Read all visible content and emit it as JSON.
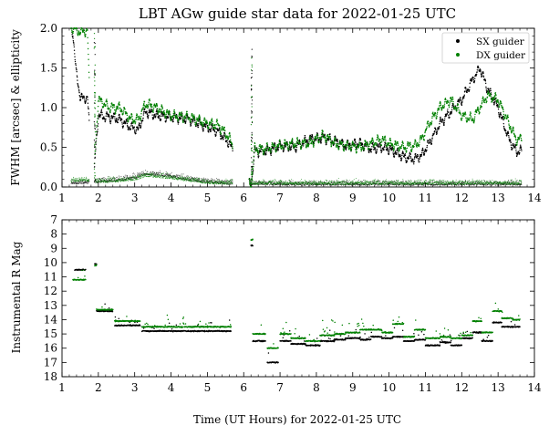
{
  "chart_data": [
    {
      "type": "scatter",
      "title": "LBT AGw guide star data for 2022-01-25 UTC",
      "ylabel": "FWHM [arcsec] & ellipticity",
      "xlim": [
        1,
        14
      ],
      "ylim": [
        0.0,
        2.0
      ],
      "xticks": [
        1,
        2,
        3,
        4,
        5,
        6,
        7,
        8,
        9,
        10,
        11,
        12,
        13,
        14
      ],
      "yticks": [
        0.0,
        0.5,
        1.0,
        1.5,
        2.0
      ],
      "xtick_labels": [
        "1",
        "2",
        "3",
        "4",
        "5",
        "6",
        "7",
        "8",
        "9",
        "10",
        "11",
        "12",
        "13",
        "14"
      ],
      "ytick_labels": [
        "0.0",
        "0.5",
        "1.0",
        "1.5",
        "2.0"
      ],
      "legend": {
        "position": "top-right",
        "entries": [
          "SX guider",
          "DX guider"
        ]
      },
      "series": [
        {
          "name": "SX guider",
          "color": "#000000",
          "fwhm": {
            "x": [
              1.3,
              1.4,
              1.5,
              1.6,
              1.7,
              1.85,
              2.0,
              2.3,
              2.6,
              2.9,
              3.1,
              3.2,
              3.3,
              3.6,
              4.0,
              4.5,
              5.0,
              5.3,
              5.6,
              6.2,
              6.3,
              6.6,
              7.0,
              7.4,
              7.8,
              8.2,
              8.5,
              8.8,
              9.2,
              9.5,
              9.8,
              10.0,
              10.4,
              10.7,
              10.9,
              11.1,
              11.4,
              11.7,
              12.0,
              12.3,
              12.5,
              12.7,
              13.0,
              13.3,
              13.5
            ],
            "y": [
              1.95,
              1.4,
              1.15,
              1.1,
              1.15,
              0.0,
              0.9,
              0.88,
              0.85,
              0.75,
              0.72,
              0.85,
              0.95,
              0.9,
              0.88,
              0.85,
              0.75,
              0.7,
              0.55,
              0.0,
              0.45,
              0.45,
              0.52,
              0.5,
              0.6,
              0.62,
              0.58,
              0.52,
              0.55,
              0.48,
              0.5,
              0.48,
              0.38,
              0.35,
              0.4,
              0.55,
              0.8,
              0.95,
              1.1,
              1.35,
              1.5,
              1.25,
              1.0,
              0.6,
              0.45
            ]
          },
          "ellipticity": {
            "x": [
              1.3,
              1.6,
              2.0,
              2.5,
              3.0,
              3.3,
              3.6,
              4.0,
              4.5,
              5.0,
              5.6,
              6.3,
              7.0,
              8.0,
              9.0,
              10.0,
              11.0,
              12.0,
              13.0,
              13.6
            ],
            "y": [
              0.06,
              0.06,
              0.07,
              0.09,
              0.12,
              0.17,
              0.16,
              0.14,
              0.1,
              0.07,
              0.05,
              0.05,
              0.04,
              0.04,
              0.04,
              0.04,
              0.04,
              0.04,
              0.04,
              0.04
            ]
          }
        },
        {
          "name": "DX guider",
          "color": "#008000",
          "fwhm": {
            "x": [
              1.3,
              1.4,
              1.5,
              1.6,
              1.7,
              1.85,
              2.0,
              2.3,
              2.6,
              2.9,
              3.1,
              3.2,
              3.3,
              3.6,
              4.0,
              4.5,
              5.0,
              5.3,
              5.6,
              6.2,
              6.3,
              6.6,
              7.0,
              7.4,
              7.8,
              8.2,
              8.5,
              8.8,
              9.2,
              9.5,
              9.8,
              10.0,
              10.4,
              10.7,
              10.9,
              11.1,
              11.4,
              11.7,
              12.0,
              12.3,
              12.5,
              12.7,
              13.0,
              13.3,
              13.5
            ],
            "y": [
              2.0,
              1.98,
              1.95,
              1.97,
              1.95,
              0.0,
              1.1,
              1.0,
              1.0,
              0.85,
              0.85,
              0.95,
              1.05,
              1.0,
              0.9,
              0.88,
              0.8,
              0.78,
              0.62,
              0.0,
              0.48,
              0.48,
              0.52,
              0.55,
              0.55,
              0.65,
              0.55,
              0.52,
              0.5,
              0.55,
              0.6,
              0.55,
              0.5,
              0.52,
              0.6,
              0.8,
              1.0,
              1.1,
              0.9,
              0.85,
              1.0,
              1.15,
              1.1,
              0.8,
              0.6
            ]
          },
          "ellipticity": {
            "x": [
              1.3,
              1.6,
              2.0,
              2.5,
              3.0,
              3.3,
              3.6,
              4.0,
              4.5,
              5.0,
              5.6,
              6.3,
              7.0,
              8.0,
              9.0,
              10.0,
              11.0,
              12.0,
              13.0,
              13.6
            ],
            "y": [
              0.08,
              0.1,
              0.07,
              0.08,
              0.1,
              0.15,
              0.14,
              0.12,
              0.09,
              0.06,
              0.05,
              0.05,
              0.05,
              0.05,
              0.05,
              0.05,
              0.05,
              0.05,
              0.05,
              0.05
            ]
          }
        }
      ],
      "gaps": [
        [
          1.75,
          1.9
        ],
        [
          5.7,
          6.15
        ]
      ]
    },
    {
      "type": "scatter",
      "xlabel": "Time (UT Hours) for 2022-01-25 UTC",
      "ylabel": "Instrumental R Mag",
      "xlim": [
        1,
        14
      ],
      "ylim": [
        18,
        7
      ],
      "inverted_y": true,
      "xticks": [
        1,
        2,
        3,
        4,
        5,
        6,
        7,
        8,
        9,
        10,
        11,
        12,
        13,
        14
      ],
      "yticks": [
        7,
        8,
        9,
        10,
        11,
        12,
        13,
        14,
        15,
        16,
        17,
        18
      ],
      "xtick_labels": [
        "1",
        "2",
        "3",
        "4",
        "5",
        "6",
        "7",
        "8",
        "9",
        "10",
        "11",
        "12",
        "13",
        "14"
      ],
      "ytick_labels": [
        "7",
        "8",
        "9",
        "10",
        "11",
        "12",
        "13",
        "14",
        "15",
        "16",
        "17",
        "18"
      ],
      "series": [
        {
          "name": "SX guider",
          "color": "#000000",
          "segments": [
            {
              "x": [
                1.35,
                1.65
              ],
              "y": 10.5
            },
            {
              "x": [
                1.9,
                1.95
              ],
              "y": 10.1
            },
            {
              "x": [
                1.95,
                2.4
              ],
              "y": 13.4
            },
            {
              "x": [
                2.45,
                3.15
              ],
              "y": 14.4
            },
            {
              "x": [
                3.2,
                5.65
              ],
              "y": 14.8
            },
            {
              "x": [
                6.2,
                6.25
              ],
              "y": 8.8
            },
            {
              "x": [
                6.25,
                6.6
              ],
              "y": 15.5
            },
            {
              "x": [
                6.65,
                6.95
              ],
              "y": 17.0
            },
            {
              "x": [
                7.0,
                7.3
              ],
              "y": 15.5
            },
            {
              "x": [
                7.3,
                7.7
              ],
              "y": 15.7
            },
            {
              "x": [
                7.7,
                8.1
              ],
              "y": 15.8
            },
            {
              "x": [
                8.1,
                8.5
              ],
              "y": 15.5
            },
            {
              "x": [
                8.5,
                8.8
              ],
              "y": 15.4
            },
            {
              "x": [
                8.8,
                9.2
              ],
              "y": 15.3
            },
            {
              "x": [
                9.2,
                9.5
              ],
              "y": 15.4
            },
            {
              "x": [
                9.5,
                9.8
              ],
              "y": 15.2
            },
            {
              "x": [
                9.8,
                10.1
              ],
              "y": 15.3
            },
            {
              "x": [
                10.1,
                10.4
              ],
              "y": 15.2
            },
            {
              "x": [
                10.4,
                10.7
              ],
              "y": 15.5
            },
            {
              "x": [
                10.7,
                11.0
              ],
              "y": 15.4
            },
            {
              "x": [
                11.0,
                11.4
              ],
              "y": 15.8
            },
            {
              "x": [
                11.4,
                11.7
              ],
              "y": 15.6
            },
            {
              "x": [
                11.7,
                12.0
              ],
              "y": 15.8
            },
            {
              "x": [
                12.0,
                12.3
              ],
              "y": 15.3
            },
            {
              "x": [
                12.3,
                12.55
              ],
              "y": 14.9
            },
            {
              "x": [
                12.55,
                12.85
              ],
              "y": 15.5
            },
            {
              "x": [
                12.85,
                13.1
              ],
              "y": 14.2
            },
            {
              "x": [
                13.1,
                13.4
              ],
              "y": 14.5
            },
            {
              "x": [
                13.4,
                13.6
              ],
              "y": 14.5
            }
          ]
        },
        {
          "name": "DX guider",
          "color": "#008000",
          "segments": [
            {
              "x": [
                1.3,
                1.65
              ],
              "y": 11.2
            },
            {
              "x": [
                1.9,
                1.95
              ],
              "y": 10.2
            },
            {
              "x": [
                1.95,
                2.4
              ],
              "y": 13.3
            },
            {
              "x": [
                2.45,
                3.15
              ],
              "y": 14.1
            },
            {
              "x": [
                3.2,
                5.65
              ],
              "y": 14.5
            },
            {
              "x": [
                6.2,
                6.25
              ],
              "y": 8.4
            },
            {
              "x": [
                6.25,
                6.6
              ],
              "y": 15.0
            },
            {
              "x": [
                6.65,
                6.95
              ],
              "y": 16.0
            },
            {
              "x": [
                7.0,
                7.3
              ],
              "y": 15.0
            },
            {
              "x": [
                7.3,
                7.7
              ],
              "y": 15.3
            },
            {
              "x": [
                7.7,
                8.1
              ],
              "y": 15.5
            },
            {
              "x": [
                8.1,
                8.5
              ],
              "y": 15.1
            },
            {
              "x": [
                8.5,
                8.8
              ],
              "y": 15.0
            },
            {
              "x": [
                8.8,
                9.2
              ],
              "y": 14.9
            },
            {
              "x": [
                9.2,
                9.5
              ],
              "y": 14.7
            },
            {
              "x": [
                9.5,
                9.8
              ],
              "y": 14.7
            },
            {
              "x": [
                9.8,
                10.1
              ],
              "y": 14.9
            },
            {
              "x": [
                10.1,
                10.4
              ],
              "y": 14.3
            },
            {
              "x": [
                10.4,
                10.7
              ],
              "y": 15.2
            },
            {
              "x": [
                10.7,
                11.0
              ],
              "y": 14.7
            },
            {
              "x": [
                11.0,
                11.4
              ],
              "y": 15.3
            },
            {
              "x": [
                11.4,
                11.7
              ],
              "y": 15.2
            },
            {
              "x": [
                11.7,
                12.0
              ],
              "y": 15.3
            },
            {
              "x": [
                12.0,
                12.3
              ],
              "y": 15.1
            },
            {
              "x": [
                12.3,
                12.55
              ],
              "y": 14.1
            },
            {
              "x": [
                12.55,
                12.85
              ],
              "y": 14.9
            },
            {
              "x": [
                12.85,
                13.1
              ],
              "y": 13.4
            },
            {
              "x": [
                13.1,
                13.4
              ],
              "y": 13.9
            },
            {
              "x": [
                13.4,
                13.6
              ],
              "y": 14.0
            }
          ]
        }
      ]
    }
  ]
}
